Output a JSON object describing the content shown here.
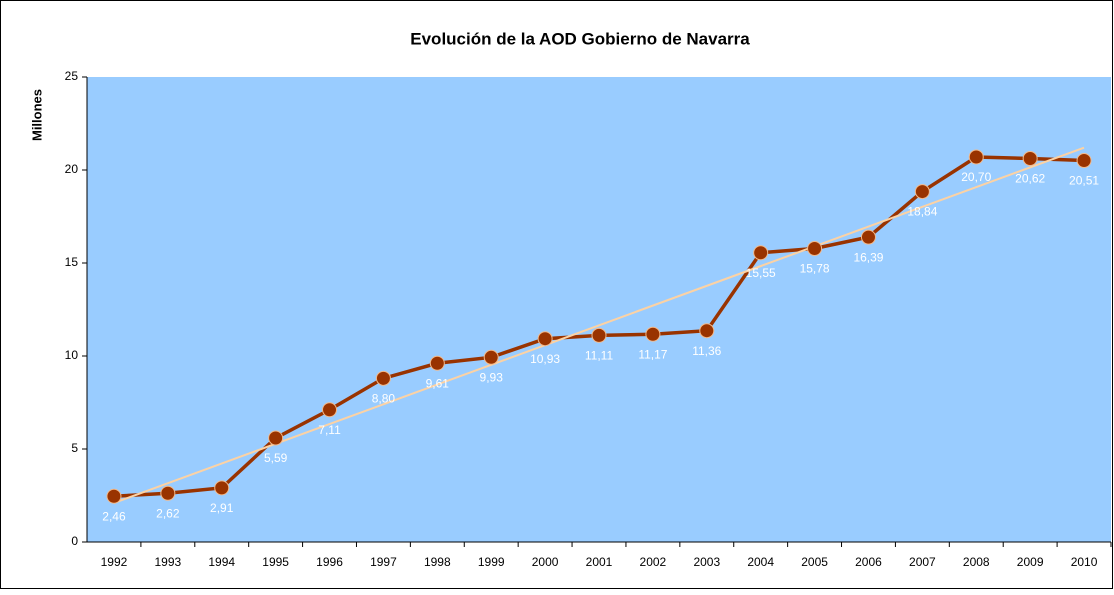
{
  "chart_data": {
    "type": "line",
    "title": "Evolución de la AOD Gobierno de Navarra",
    "y_label": "Millones",
    "categories": [
      "1992",
      "1993",
      "1994",
      "1995",
      "1996",
      "1997",
      "1998",
      "1999",
      "2000",
      "2001",
      "2002",
      "2003",
      "2004",
      "2005",
      "2006",
      "2007",
      "2008",
      "2009",
      "2010"
    ],
    "series": [
      {
        "color": "#993300",
        "values": [
          2.46,
          2.62,
          2.91,
          5.59,
          7.11,
          8.8,
          9.61,
          9.93,
          10.93,
          11.11,
          11.17,
          11.36,
          15.55,
          15.78,
          16.39,
          18.84,
          20.7,
          20.62,
          20.51
        ],
        "value_labels": [
          "2,46",
          "2,62",
          "2,91",
          "5,59",
          "7,11",
          "8,80",
          "9,61",
          "9,93",
          "10,93",
          "11,11",
          "11,17",
          "11,36",
          "15,55",
          "15,78",
          "16,39",
          "18,84",
          "20,70",
          "20,62",
          "20,51"
        ]
      }
    ],
    "trendline": {
      "color": "#fcd2a4",
      "values": [
        2.1,
        21.2
      ]
    },
    "ylim": [
      0,
      25
    ],
    "yticks": [
      0,
      5,
      10,
      15,
      20,
      25
    ],
    "plot_background": "#99ccff"
  }
}
